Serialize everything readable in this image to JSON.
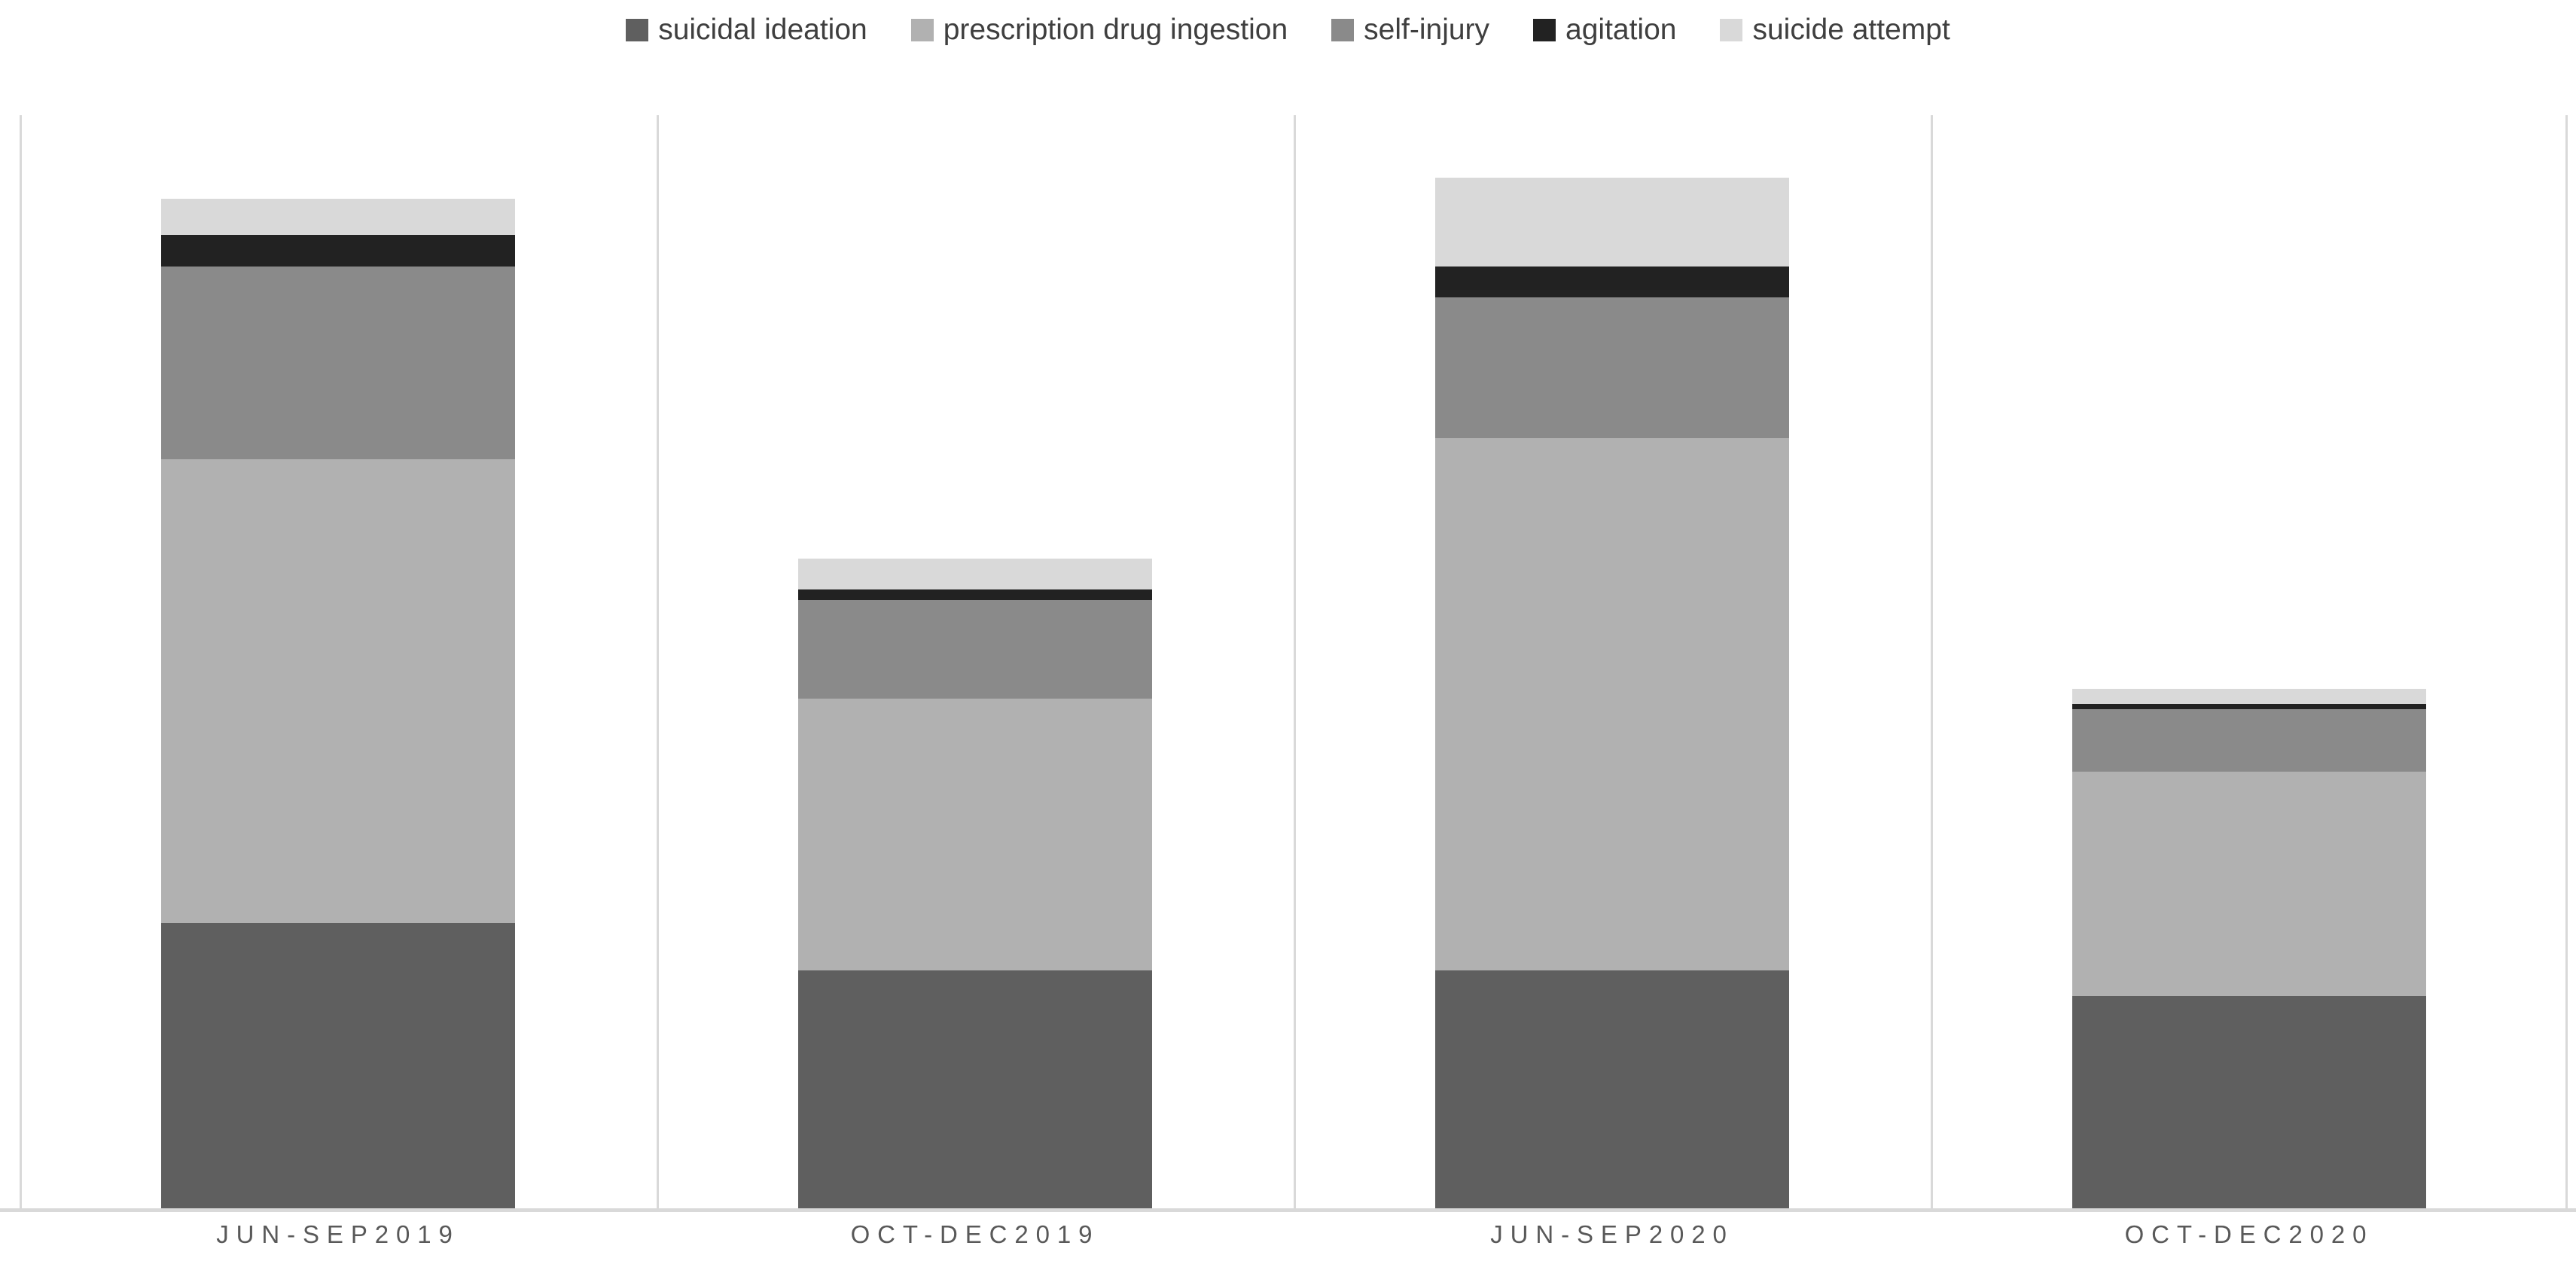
{
  "chart_data": {
    "type": "bar",
    "stacked": true,
    "title": "",
    "xlabel": "",
    "ylabel": "",
    "categories": [
      "JUN-SEP2019",
      "OCT-DEC2019",
      "JUN-SEP2020",
      "OCT-DEC2020"
    ],
    "series": [
      {
        "name": "suicidal ideation",
        "color": "#5f5f5f",
        "values": [
          55,
          46,
          46,
          41
        ]
      },
      {
        "name": "prescription drug ingestion",
        "color": "#b1b1b1",
        "values": [
          89,
          52,
          102,
          43
        ]
      },
      {
        "name": "self-injury",
        "color": "#8a8a8a",
        "values": [
          37,
          19,
          27,
          12
        ]
      },
      {
        "name": "agitation",
        "color": "#222222",
        "values": [
          6,
          2,
          6,
          1
        ]
      },
      {
        "name": "suicide attempt",
        "color": "#d9d9d9",
        "values": [
          7,
          6,
          17,
          3
        ]
      }
    ],
    "totals": [
      194,
      125,
      198,
      100
    ],
    "ylim": [
      0,
      210
    ],
    "y_axis_visible": false,
    "grid": "vertical-category-separators",
    "legend_position": "top"
  },
  "layout_colors": {
    "background": "#ffffff",
    "gridline": "#d9d9d9",
    "axis_line": "#d9d9d9",
    "tick_label_text": "#595959",
    "legend_text": "#3f3f3f"
  }
}
